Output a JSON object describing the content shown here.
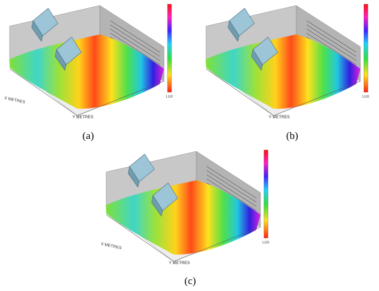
{
  "panels": [
    {
      "caption": "(a)",
      "x_axis_label": "X METRES",
      "y_axis_label": "Y METRES",
      "colorbar_label": "LUX"
    },
    {
      "caption": "(b)",
      "y_axis_label": "Y METRES",
      "colorbar_label": "LUX"
    },
    {
      "caption": "(c)",
      "x_axis_label": "X METRES",
      "y_axis_label": "Y METRES",
      "colorbar_label": "LUX"
    }
  ]
}
